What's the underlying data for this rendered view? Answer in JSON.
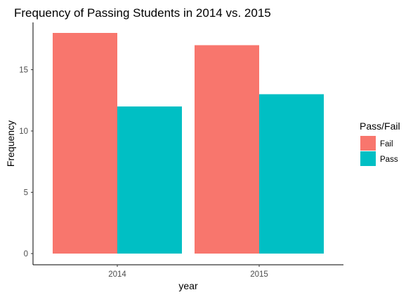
{
  "chart_data": {
    "type": "bar",
    "title": "Frequency of Passing Students in 2014 vs. 2015",
    "xlabel": "year",
    "ylabel": "Frequency",
    "categories": [
      "2014",
      "2015"
    ],
    "series": [
      {
        "name": "Fail",
        "values": [
          18,
          17
        ],
        "color": "#F8766D"
      },
      {
        "name": "Pass",
        "values": [
          12,
          13
        ],
        "color": "#00BFC4"
      }
    ],
    "yticks": [
      0,
      5,
      10,
      15
    ],
    "ylim": [
      0,
      18
    ],
    "grid": false,
    "legend": {
      "title": "Pass/Fail",
      "position": "right"
    }
  }
}
